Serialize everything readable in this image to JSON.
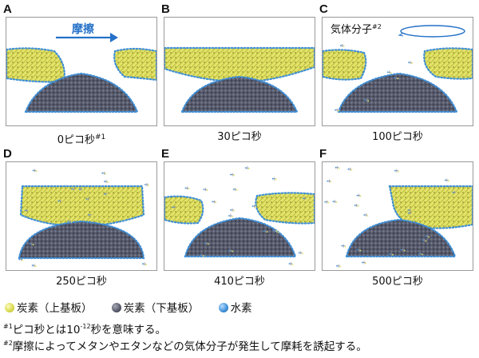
{
  "colors": {
    "upper_carbon": "#e3e36a",
    "upper_carbon_dark": "#b3b531",
    "lower_carbon": "#54586a",
    "lower_carbon_dark": "#33363f",
    "hydrogen": "#3e8fd8",
    "arrow": "#2471c8"
  },
  "panels": [
    {
      "letter": "A",
      "time": "0ピコ秒",
      "time_sup": "#1",
      "overlay": "摩擦",
      "overlay_icon": "right-arrow-icon"
    },
    {
      "letter": "B",
      "time": "30ピコ秒"
    },
    {
      "letter": "C",
      "time": "100ピコ秒",
      "overlay": "気体分子",
      "overlay_sup": "#2"
    },
    {
      "letter": "D",
      "time": "250ピコ秒"
    },
    {
      "letter": "E",
      "time": "410ピコ秒"
    },
    {
      "letter": "F",
      "time": "500ピコ秒"
    }
  ],
  "legend": [
    {
      "label": "炭素（上基板）",
      "color": "#e3e36a"
    },
    {
      "label": "炭素（下基板）",
      "color": "#54586a"
    },
    {
      "label": "水素",
      "color": "#3e8fd8"
    }
  ],
  "notes": [
    {
      "mark": "#1",
      "pre": "ピコ秒とは10",
      "exp": "-12",
      "post": "秒を意味する。"
    },
    {
      "mark": "#2",
      "text": "摩擦によってメタンやエタンなどの気体分子が発生して摩耗を誘起する。"
    }
  ]
}
